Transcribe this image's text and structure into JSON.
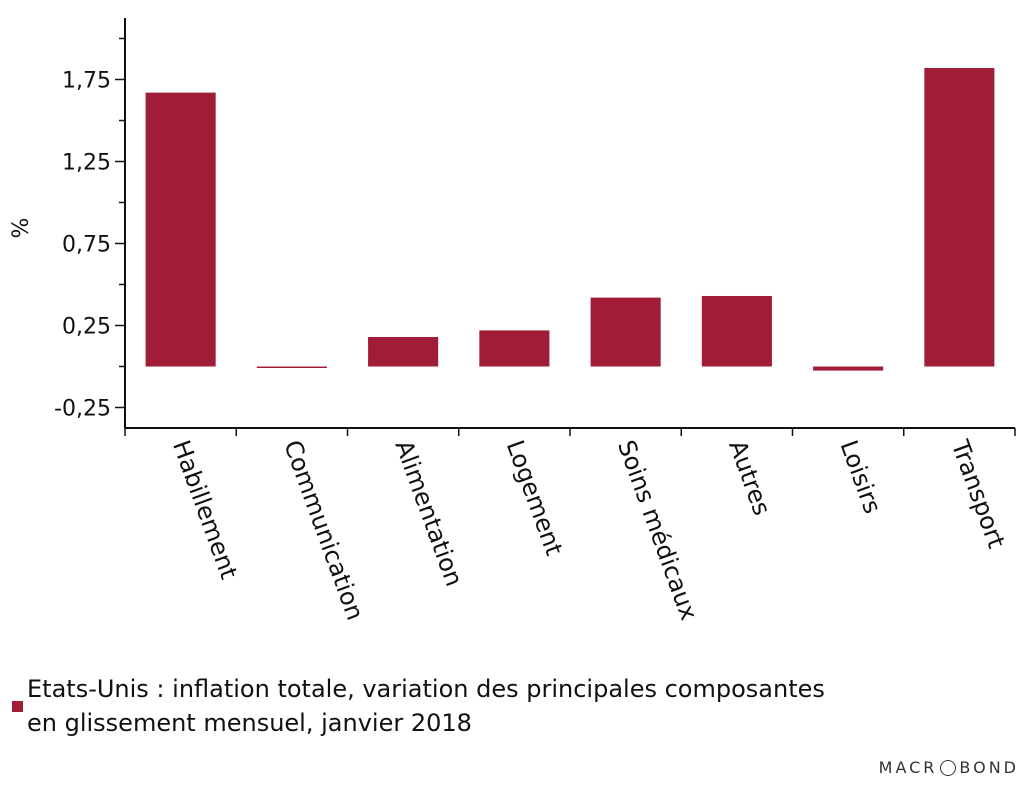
{
  "chart_data": {
    "type": "bar",
    "categories": [
      "Habillement",
      "Communication",
      "Alimentation",
      "Logement",
      "Soins médicaux",
      "Autres",
      "Loisirs",
      "Transport"
    ],
    "values": [
      1.67,
      -0.005,
      0.18,
      0.22,
      0.42,
      0.43,
      -0.025,
      1.82
    ],
    "title": "",
    "xlabel": "",
    "ylabel": "%",
    "ylim": [
      -0.375,
      2.125
    ],
    "yticks": [
      "1,75",
      "1,25",
      "0,75",
      "0,25",
      "-0,25"
    ],
    "ytick_values": [
      1.75,
      1.25,
      0.75,
      0.25,
      -0.25
    ],
    "bar_color": "#a01c37",
    "grid": false
  },
  "legend": {
    "color": "#a01c37",
    "line1": "Etats-Unis : inflation totale, variation des principales composantes",
    "line2": "en glissement mensuel, janvier 2018"
  },
  "logo": {
    "left": "MACR",
    "right": "BOND"
  }
}
